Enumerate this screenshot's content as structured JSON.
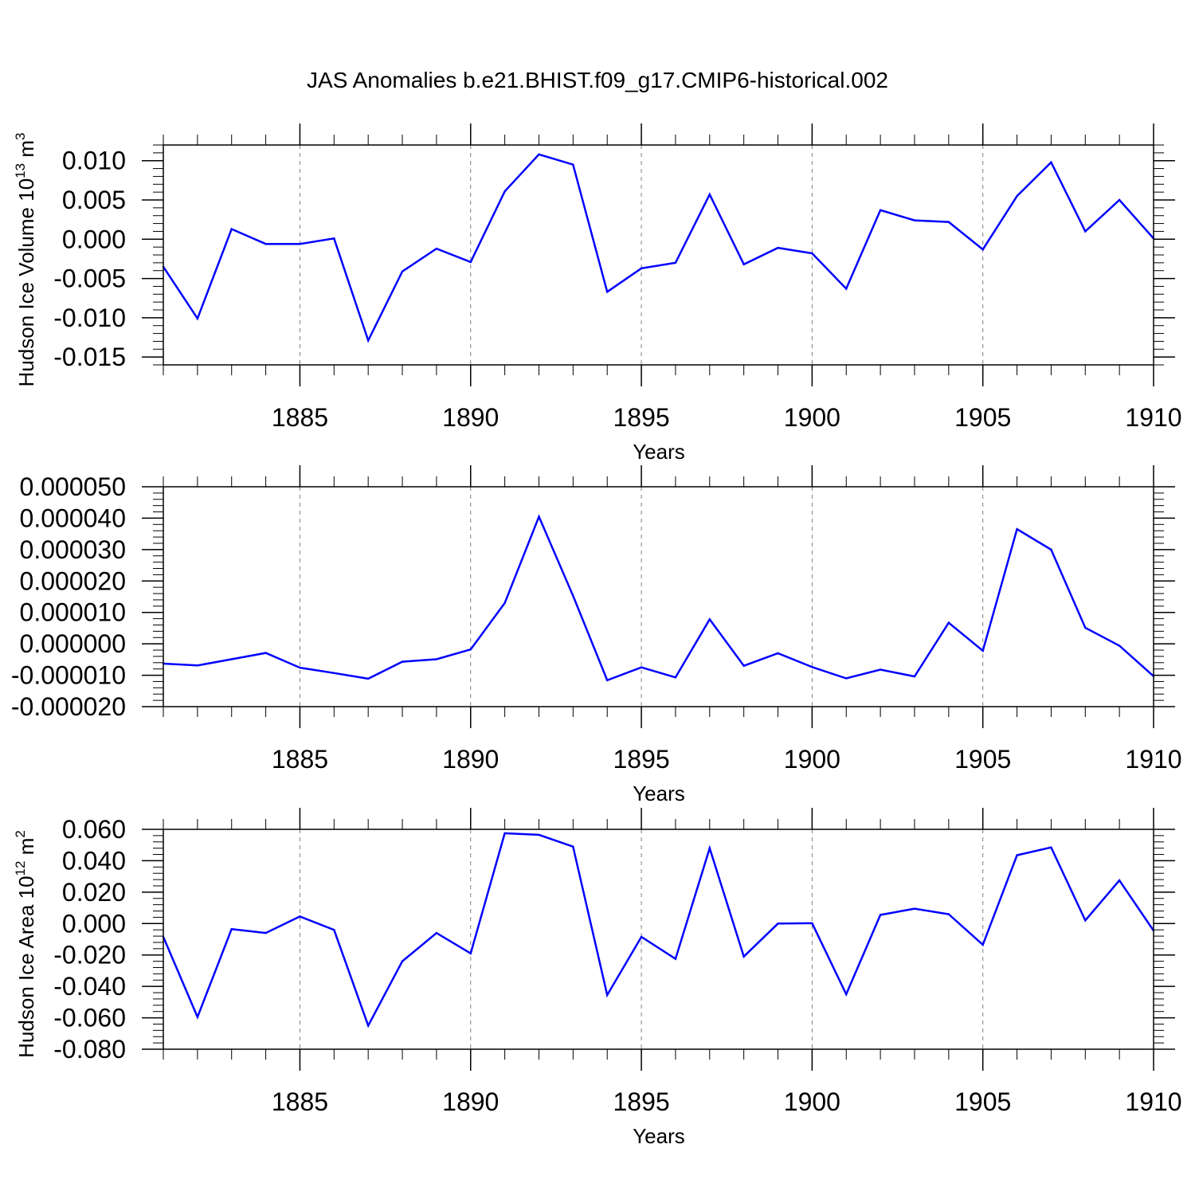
{
  "title": "JAS Anomalies b.e21.BHIST.f09_g17.CMIP6-historical.002",
  "colors": {
    "line": "#0000ff",
    "axis": "#000000",
    "grid": "#7f7f7f"
  },
  "chart_data": [
    {
      "type": "line",
      "name": "volume",
      "ylabel_main": "Hudson Ice Volume 10",
      "ylabel_sup": "13",
      "ylabel_unit": " m",
      "ylabel_unit_sup": "3",
      "xlabel": "Years",
      "xlim": [
        1881,
        1910
      ],
      "ylim": [
        -0.016,
        0.012
      ],
      "x_ticks": [
        1885,
        1890,
        1895,
        1900,
        1905,
        1910
      ],
      "x_tick_labels": [
        "1885",
        "1890",
        "1895",
        "1900",
        "1905",
        "1910"
      ],
      "y_ticks": [
        -0.015,
        -0.01,
        -0.005,
        0.0,
        0.005,
        0.01
      ],
      "y_tick_labels": [
        "-0.015",
        "-0.010",
        "-0.005",
        "0.000",
        "0.005",
        "0.010"
      ],
      "grid": "vertical dashed at major x ticks",
      "x": [
        1881,
        1882,
        1883,
        1884,
        1885,
        1886,
        1887,
        1888,
        1889,
        1890,
        1891,
        1892,
        1893,
        1894,
        1895,
        1896,
        1897,
        1898,
        1899,
        1900,
        1901,
        1902,
        1903,
        1904,
        1905,
        1906,
        1907,
        1908,
        1909,
        1910
      ],
      "y": [
        -0.0035,
        -0.0101,
        0.0013,
        -0.0006,
        -0.0006,
        0.0001,
        -0.0129,
        -0.0041,
        -0.0012,
        -0.0029,
        0.0061,
        0.0108,
        0.0095,
        -0.0067,
        -0.0037,
        -0.003,
        0.0057,
        -0.0032,
        -0.0011,
        -0.0018,
        -0.0063,
        0.0037,
        0.0024,
        0.0022,
        -0.0013,
        0.0055,
        0.0098,
        0.001,
        0.005,
        0.0001
      ]
    },
    {
      "type": "line",
      "name": "middle",
      "xlabel": "Years",
      "xlim": [
        1881,
        1910
      ],
      "ylim": [
        -2e-05,
        5e-05
      ],
      "x_ticks": [
        1885,
        1890,
        1895,
        1900,
        1905,
        1910
      ],
      "x_tick_labels": [
        "1885",
        "1890",
        "1895",
        "1900",
        "1905",
        "1910"
      ],
      "y_ticks": [
        -2e-05,
        -1e-05,
        0.0,
        1e-05,
        2e-05,
        3e-05,
        4e-05,
        5e-05
      ],
      "y_tick_labels": [
        "-0.000020",
        "-0.000010",
        "0.000000",
        "0.000010",
        "0.000020",
        "0.000030",
        "0.000040",
        "0.000050"
      ],
      "grid": "vertical dashed at major x ticks",
      "x": [
        1881,
        1882,
        1883,
        1884,
        1885,
        1886,
        1887,
        1888,
        1889,
        1890,
        1891,
        1892,
        1893,
        1894,
        1895,
        1896,
        1897,
        1898,
        1899,
        1900,
        1901,
        1902,
        1903,
        1904,
        1905,
        1906,
        1907,
        1908,
        1909,
        1910
      ],
      "y": [
        -6.3e-06,
        -6.9e-06,
        -4.9e-06,
        -2.9e-06,
        -7.6e-06,
        -9.3e-06,
        -1.11e-05,
        -5.7e-06,
        -4.9e-06,
        -1.8e-06,
        1.3e-05,
        4.05e-05,
        1.53e-05,
        -1.16e-05,
        -7.5e-06,
        -1.07e-05,
        7.8e-06,
        -7e-06,
        -3e-06,
        -7.4e-06,
        -1.1e-05,
        -8.2e-06,
        -1.04e-05,
        6.7e-06,
        -2.2e-06,
        3.65e-05,
        3e-05,
        5.1e-06,
        -6e-07,
        -1.03e-05
      ]
    },
    {
      "type": "line",
      "name": "area",
      "ylabel_main": "Hudson Ice Area 10",
      "ylabel_sup": "12",
      "ylabel_unit": " m",
      "ylabel_unit_sup": "2",
      "xlabel": "Years",
      "xlim": [
        1881,
        1910
      ],
      "ylim": [
        -0.08,
        0.06
      ],
      "x_ticks": [
        1885,
        1890,
        1895,
        1900,
        1905,
        1910
      ],
      "x_tick_labels": [
        "1885",
        "1890",
        "1895",
        "1900",
        "1905",
        "1910"
      ],
      "y_ticks": [
        -0.08,
        -0.06,
        -0.04,
        -0.02,
        0.0,
        0.02,
        0.04,
        0.06
      ],
      "y_tick_labels": [
        "-0.080",
        "-0.060",
        "-0.040",
        "-0.020",
        "0.000",
        "0.020",
        "0.040",
        "0.060"
      ],
      "grid": "vertical dashed at major x ticks",
      "x": [
        1881,
        1882,
        1883,
        1884,
        1885,
        1886,
        1887,
        1888,
        1889,
        1890,
        1891,
        1892,
        1893,
        1894,
        1895,
        1896,
        1897,
        1898,
        1899,
        1900,
        1901,
        1902,
        1903,
        1904,
        1905,
        1906,
        1907,
        1908,
        1909,
        1910
      ],
      "y": [
        -0.0085,
        -0.0595,
        -0.0035,
        -0.006,
        0.0045,
        -0.004,
        -0.065,
        -0.024,
        -0.006,
        -0.019,
        0.0575,
        0.0565,
        0.049,
        -0.0455,
        -0.0085,
        -0.0225,
        0.048,
        -0.021,
        0.0,
        0.0002,
        -0.045,
        0.0055,
        0.0095,
        0.006,
        -0.0135,
        0.0435,
        0.0485,
        0.002,
        0.0275,
        -0.0045
      ]
    }
  ]
}
